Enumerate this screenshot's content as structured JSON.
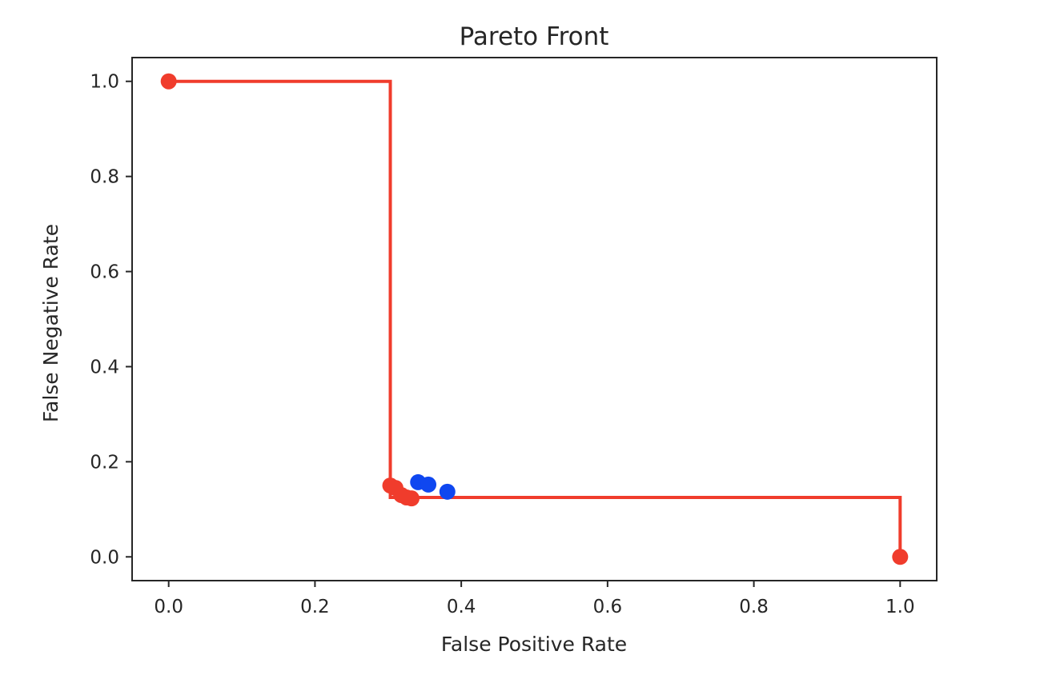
{
  "chart_data": {
    "type": "scatter",
    "title": "Pareto Front",
    "xlabel": "False Positive Rate",
    "ylabel": "False Negative Rate",
    "xlim": [
      -0.05,
      1.05
    ],
    "ylim": [
      -0.05,
      1.05
    ],
    "x_ticks": [
      0.0,
      0.2,
      0.4,
      0.6,
      0.8,
      1.0
    ],
    "x_tick_labels": [
      "0.0",
      "0.2",
      "0.4",
      "0.6",
      "0.8",
      "1.0"
    ],
    "y_ticks": [
      0.0,
      0.2,
      0.4,
      0.6,
      0.8,
      1.0
    ],
    "y_tick_labels": [
      "0.0",
      "0.2",
      "0.4",
      "0.6",
      "0.8",
      "1.0"
    ],
    "grid": false,
    "legend": "none",
    "series": [
      {
        "kind": "step-line",
        "color": "#f03c2c",
        "points": [
          [
            0.0,
            1.0
          ],
          [
            0.303,
            1.0
          ],
          [
            0.303,
            0.125
          ],
          [
            1.0,
            0.125
          ],
          [
            1.0,
            0.0
          ]
        ]
      },
      {
        "kind": "points",
        "color": "#f03c2c",
        "points": [
          [
            0.0,
            1.0
          ],
          [
            0.303,
            0.15
          ],
          [
            0.31,
            0.145
          ],
          [
            0.318,
            0.13
          ],
          [
            0.325,
            0.125
          ],
          [
            0.332,
            0.123
          ],
          [
            1.0,
            0.0
          ]
        ]
      },
      {
        "kind": "points",
        "color": "#0f47f0",
        "points": [
          [
            0.341,
            0.157
          ],
          [
            0.355,
            0.152
          ],
          [
            0.381,
            0.137
          ]
        ]
      }
    ]
  }
}
